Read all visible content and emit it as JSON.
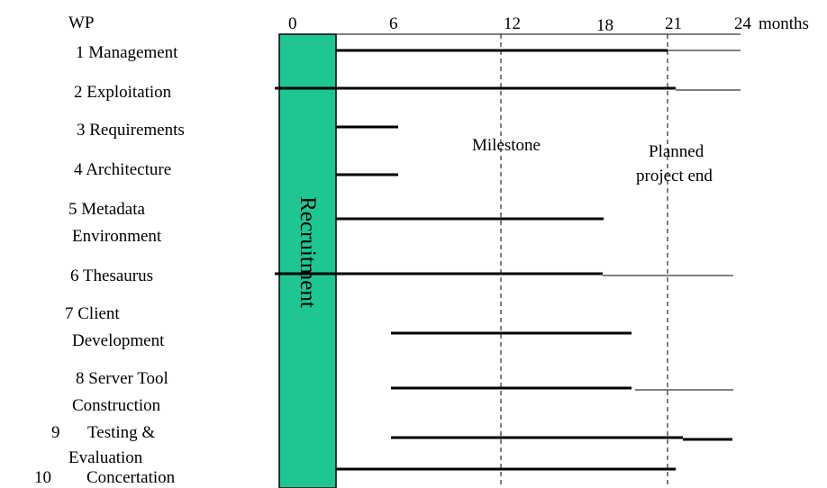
{
  "header": {
    "wp_label": "WP",
    "unit_label": "months"
  },
  "timeline": {
    "ticks": [
      "0",
      "6",
      "12",
      "18",
      "21",
      "24"
    ],
    "milestone_label": "Milestone",
    "planned_end_label_line1": "Planned",
    "planned_end_label_line2": "project end"
  },
  "recruitment": {
    "label": "Recruitment",
    "color": "#1fc592"
  },
  "work_packages": [
    {
      "number": "1",
      "title_lines": [
        "Management"
      ]
    },
    {
      "number": "2",
      "title_lines": [
        "Exploitation"
      ]
    },
    {
      "number": "3",
      "title_lines": [
        "Requirements"
      ]
    },
    {
      "number": "4",
      "title_lines": [
        "Architecture"
      ]
    },
    {
      "number": "5",
      "title_lines": [
        "Metadata",
        "Environment"
      ]
    },
    {
      "number": "6",
      "title_lines": [
        "Thesaurus"
      ]
    },
    {
      "number": "7",
      "title_lines": [
        "Client",
        "Development"
      ]
    },
    {
      "number": "8",
      "title_lines": [
        "Server Tool",
        "Construction"
      ]
    },
    {
      "number": "9",
      "title_lines": [
        "Testing &",
        "Evaluation"
      ]
    },
    {
      "number": "10",
      "title_lines": [
        "Concertation"
      ]
    }
  ]
}
